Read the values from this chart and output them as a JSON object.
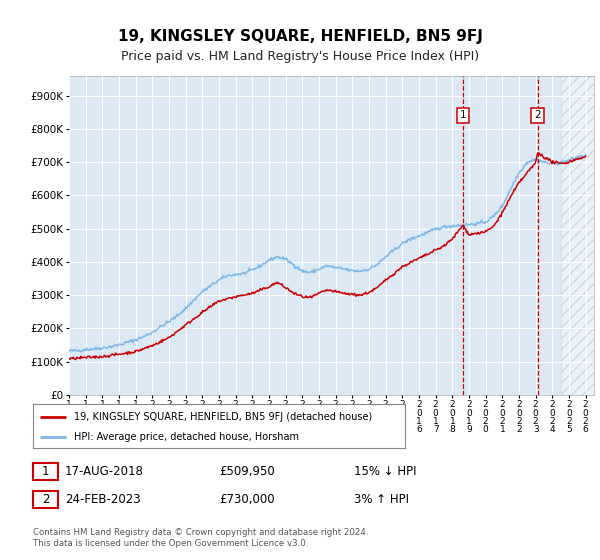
{
  "title": "19, KINGSLEY SQUARE, HENFIELD, BN5 9FJ",
  "subtitle": "Price paid vs. HM Land Registry's House Price Index (HPI)",
  "title_fontsize": 11,
  "subtitle_fontsize": 9,
  "ylabel_ticks": [
    "£0",
    "£100K",
    "£200K",
    "£300K",
    "£400K",
    "£500K",
    "£600K",
    "£700K",
    "£800K",
    "£900K"
  ],
  "ytick_vals": [
    0,
    100000,
    200000,
    300000,
    400000,
    500000,
    600000,
    700000,
    800000,
    900000
  ],
  "ylim": [
    0,
    960000
  ],
  "xlim_start": 1995.0,
  "xlim_end": 2026.5,
  "background_color": "#ffffff",
  "plot_bg_color": "#dce9f5",
  "grid_color": "#ffffff",
  "hpi_color": "#7db8e8",
  "price_color": "#cc0000",
  "vline_color": "#cc0000",
  "marker1_year": 2018.625,
  "marker2_year": 2023.12,
  "marker1_price": 509950,
  "marker2_price": 730000,
  "hatch_region_start": 2024.5,
  "legend_label1": "19, KINGSLEY SQUARE, HENFIELD, BN5 9FJ (detached house)",
  "legend_label2": "HPI: Average price, detached house, Horsham",
  "annot1_num": "1",
  "annot2_num": "2",
  "annot1_date": "17-AUG-2018",
  "annot1_price": "£509,950",
  "annot1_hpi": "15% ↓ HPI",
  "annot2_date": "24-FEB-2023",
  "annot2_price": "£730,000",
  "annot2_hpi": "3% ↑ HPI",
  "footer": "Contains HM Land Registry data © Crown copyright and database right 2024.\nThis data is licensed under the Open Government Licence v3.0.",
  "xtick_years": [
    1995,
    1996,
    1997,
    1998,
    1999,
    2000,
    2001,
    2002,
    2003,
    2004,
    2005,
    2006,
    2007,
    2008,
    2009,
    2010,
    2011,
    2012,
    2013,
    2014,
    2015,
    2016,
    2017,
    2018,
    2019,
    2020,
    2021,
    2022,
    2023,
    2024,
    2025,
    2026
  ]
}
